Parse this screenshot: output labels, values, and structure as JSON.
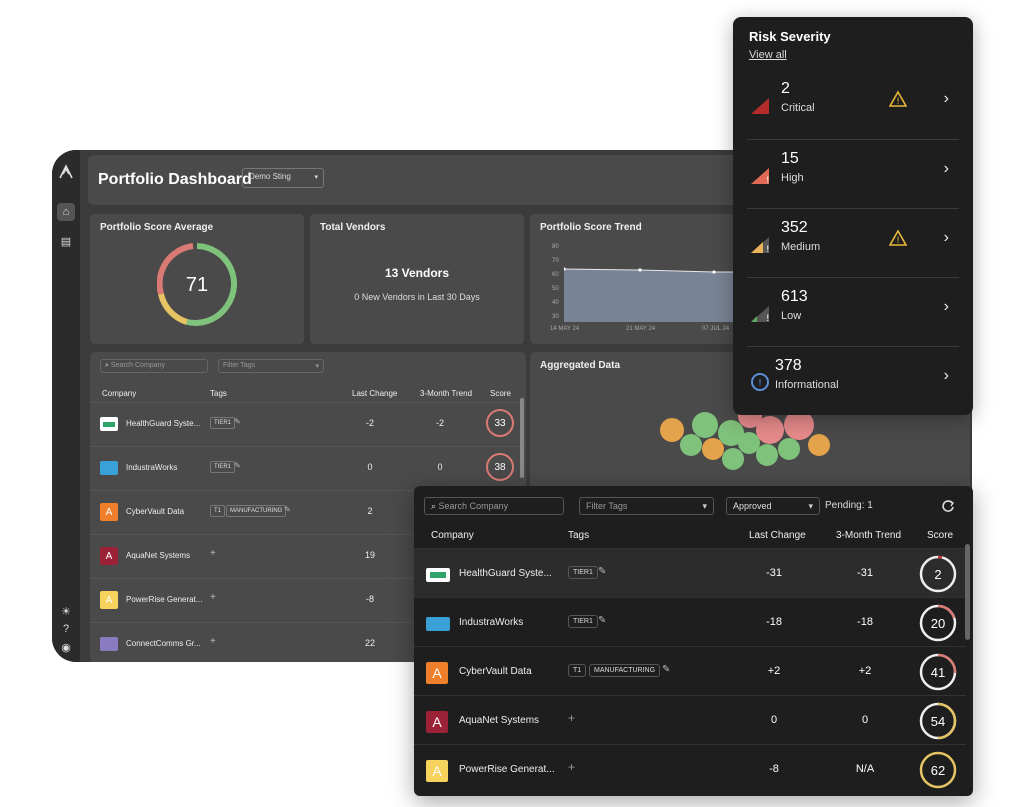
{
  "dashboard": {
    "title": "Portfolio Dashboard",
    "org_select": "Demo Sting",
    "score_card": {
      "title": "Portfolio Score Average",
      "value": "71"
    },
    "vendors_card": {
      "title": "Total Vendors",
      "main": "13 Vendors",
      "sub": "0 New Vendors in Last 30 Days"
    },
    "trend_card": {
      "title": "Portfolio Score Trend",
      "y_ticks": [
        "80",
        "70",
        "60",
        "50",
        "40",
        "30"
      ],
      "x_ticks": [
        "14 MAY 24",
        "21 MAY 24",
        "07 JUL 24"
      ]
    },
    "aggregated_title": "Aggregated Data",
    "search_placeholder": "Search Company",
    "filter_placeholder": "Filter Tags",
    "columns": {
      "company": "Company",
      "tags": "Tags",
      "last_change": "Last Change",
      "trend": "3-Month Trend",
      "score": "Score"
    },
    "rows": [
      {
        "name": "HealthGuard Syste...",
        "tags": [
          "TIER1"
        ],
        "change": "-2",
        "trend": "-2",
        "score": "33"
      },
      {
        "name": "IndustraWorks",
        "tags": [
          "TIER1"
        ],
        "change": "0",
        "trend": "0",
        "score": "38"
      },
      {
        "name": "CyberVault Data",
        "tags": [
          "T1",
          "MANUFACTURING"
        ],
        "change": "2",
        "trend": "",
        "score": ""
      },
      {
        "name": "AquaNet Systems",
        "tags": [],
        "change": "19",
        "trend": "",
        "score": ""
      },
      {
        "name": "PowerRise Generat...",
        "tags": [],
        "change": "-8",
        "trend": "",
        "score": ""
      },
      {
        "name": "ConnectComms Gr...",
        "tags": [],
        "change": "22",
        "trend": "",
        "score": ""
      }
    ],
    "logo_letter": "A"
  },
  "risk": {
    "title": "Risk Severity",
    "view_all": "View all",
    "items": [
      {
        "count": "2",
        "label": "Critical",
        "color": "#b32b2b"
      },
      {
        "count": "15",
        "label": "High",
        "color": "#e06a55"
      },
      {
        "count": "352",
        "label": "Medium",
        "color": "#e8b45a"
      },
      {
        "count": "613",
        "label": "Low",
        "color": "#5fa85f"
      },
      {
        "count": "378",
        "label": "Informational",
        "color": "#5b8fd6"
      }
    ]
  },
  "table": {
    "search_placeholder": "Search Company",
    "filter_placeholder": "Filter Tags",
    "status_select": "Approved",
    "pending": "Pending: 1",
    "columns": {
      "company": "Company",
      "tags": "Tags",
      "last_change": "Last Change",
      "trend": "3-Month Trend",
      "score": "Score"
    },
    "rows": [
      {
        "name": "HealthGuard Syste...",
        "tags": [
          "TIER1"
        ],
        "change": "-31",
        "trend": "-31",
        "score": "2"
      },
      {
        "name": "IndustraWorks",
        "tags": [
          "TIER1"
        ],
        "change": "-18",
        "trend": "-18",
        "score": "20"
      },
      {
        "name": "CyberVault Data",
        "tags": [
          "T1",
          "MANUFACTURING"
        ],
        "change": "+2",
        "trend": "+2",
        "score": "41"
      },
      {
        "name": "AquaNet Systems",
        "tags": [],
        "change": "0",
        "trend": "0",
        "score": "54"
      },
      {
        "name": "PowerRise Generat...",
        "tags": [],
        "change": "-8",
        "trend": "N/A",
        "score": "62"
      }
    ],
    "logo_letter": "A"
  }
}
